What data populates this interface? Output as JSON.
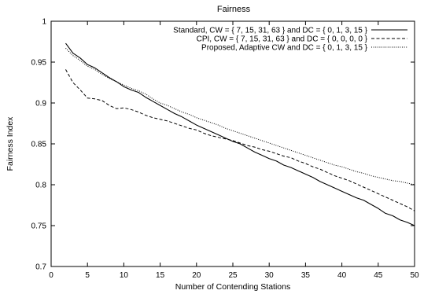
{
  "chart_data": {
    "type": "line",
    "title": "Fairness",
    "xlabel": "Number of Contending Stations",
    "ylabel": "Fairness Index",
    "xlim": [
      0,
      50
    ],
    "ylim": [
      0.7,
      1.0
    ],
    "xticks": [
      0,
      5,
      10,
      15,
      20,
      25,
      30,
      35,
      40,
      45,
      50
    ],
    "yticks": [
      0.7,
      0.75,
      0.8,
      0.85,
      0.9,
      0.95,
      1
    ],
    "xtick_labels": [
      "0",
      "5",
      "10",
      "15",
      "20",
      "25",
      "30",
      "35",
      "40",
      "45",
      "50"
    ],
    "ytick_labels": [
      "0.7",
      "0.75",
      "0.8",
      "0.85",
      "0.9",
      "0.95",
      "1"
    ],
    "grid": false,
    "legend_position": "top-right",
    "x": [
      2,
      3,
      4,
      5,
      6,
      7,
      8,
      9,
      10,
      11,
      12,
      13,
      14,
      15,
      16,
      17,
      18,
      19,
      20,
      21,
      22,
      23,
      24,
      25,
      26,
      27,
      28,
      29,
      30,
      31,
      32,
      33,
      34,
      35,
      36,
      37,
      38,
      39,
      40,
      41,
      42,
      43,
      44,
      45,
      46,
      47,
      48,
      49,
      50
    ],
    "series": [
      {
        "name": "Standard, CW = { 7, 15, 31, 63 } and DC = { 0, 1, 3, 15 }",
        "style": "solid",
        "color": "#000000",
        "values": [
          0.973,
          0.961,
          0.955,
          0.947,
          0.943,
          0.937,
          0.931,
          0.926,
          0.92,
          0.916,
          0.913,
          0.907,
          0.902,
          0.897,
          0.892,
          0.887,
          0.883,
          0.878,
          0.873,
          0.869,
          0.865,
          0.861,
          0.857,
          0.853,
          0.85,
          0.845,
          0.84,
          0.836,
          0.832,
          0.829,
          0.824,
          0.821,
          0.817,
          0.813,
          0.809,
          0.804,
          0.8,
          0.796,
          0.792,
          0.788,
          0.784,
          0.781,
          0.776,
          0.771,
          0.765,
          0.762,
          0.757,
          0.754,
          0.75
        ]
      },
      {
        "name": "CPI, CW = { 7, 15, 31, 63 } and DC = { 0, 0, 0, 0 }",
        "style": "dashed",
        "color": "#000000",
        "values": [
          0.941,
          0.925,
          0.916,
          0.906,
          0.905,
          0.903,
          0.897,
          0.893,
          0.894,
          0.892,
          0.889,
          0.885,
          0.882,
          0.88,
          0.878,
          0.875,
          0.872,
          0.869,
          0.867,
          0.863,
          0.86,
          0.858,
          0.856,
          0.854,
          0.851,
          0.848,
          0.846,
          0.843,
          0.841,
          0.838,
          0.835,
          0.833,
          0.829,
          0.826,
          0.822,
          0.819,
          0.815,
          0.811,
          0.808,
          0.805,
          0.801,
          0.797,
          0.793,
          0.789,
          0.785,
          0.781,
          0.777,
          0.773,
          0.768
        ]
      },
      {
        "name": "Proposed, Adaptive CW and DC = { 0, 1, 3, 15 }",
        "style": "dotted",
        "color": "#000000",
        "values": [
          0.967,
          0.958,
          0.952,
          0.945,
          0.941,
          0.935,
          0.93,
          0.926,
          0.922,
          0.918,
          0.915,
          0.911,
          0.905,
          0.9,
          0.897,
          0.893,
          0.889,
          0.886,
          0.882,
          0.879,
          0.876,
          0.873,
          0.869,
          0.866,
          0.863,
          0.86,
          0.857,
          0.854,
          0.851,
          0.848,
          0.845,
          0.842,
          0.839,
          0.836,
          0.833,
          0.83,
          0.827,
          0.824,
          0.822,
          0.819,
          0.816,
          0.814,
          0.811,
          0.809,
          0.807,
          0.805,
          0.804,
          0.802,
          0.8
        ]
      }
    ]
  }
}
